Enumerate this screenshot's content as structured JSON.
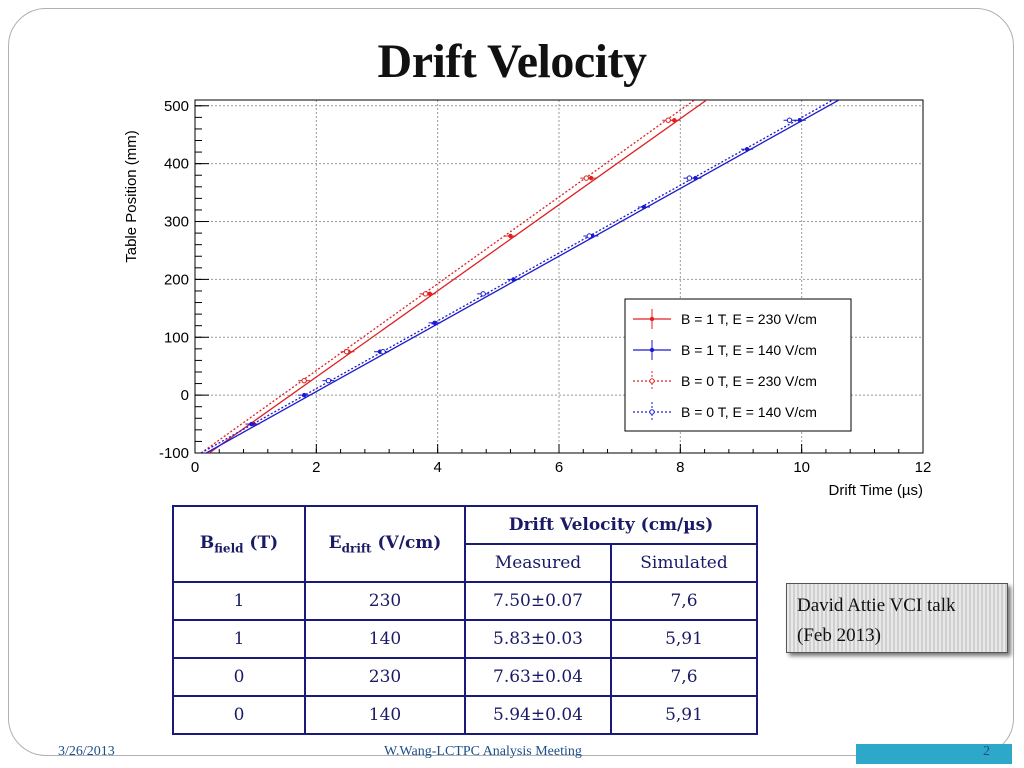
{
  "slide": {
    "title": "Drift Velocity",
    "note_line1": "David Attie VCI talk",
    "note_line2": "(Feb 2013)",
    "footer_date": "3/26/2013",
    "footer_center": "W.Wang-LCTPC Analysis Meeting",
    "page_number": "2"
  },
  "table": {
    "header_bfield": "B",
    "header_bfield_sub": "field",
    "header_bfield_unit": " (T)",
    "header_edrift": "E",
    "header_edrift_sub": "drift",
    "header_edrift_unit": " (V/cm)",
    "header_velocity": "Drift Velocity (cm/µs)",
    "header_measured": "Measured",
    "header_simulated": "Simulated",
    "rows": [
      {
        "b": "1",
        "e": "230",
        "measured": "7.50±0.07",
        "simulated": "7,6"
      },
      {
        "b": "1",
        "e": "140",
        "measured": "5.83±0.03",
        "simulated": "5,91"
      },
      {
        "b": "0",
        "e": "230",
        "measured": "7.63±0.04",
        "simulated": "7,6"
      },
      {
        "b": "0",
        "e": "140",
        "measured": "5.94±0.04",
        "simulated": "5,91"
      }
    ]
  },
  "chart_data": {
    "type": "scatter",
    "xlabel": "Drift Time (µs)",
    "ylabel": "Table Position (mm)",
    "xlim": [
      0,
      12
    ],
    "ylim": [
      -100,
      510
    ],
    "xticks": [
      "0",
      "2",
      "4",
      "6",
      "8",
      "10",
      "12"
    ],
    "yticks": [
      "-100",
      "0",
      "100",
      "200",
      "300",
      "400",
      "500"
    ],
    "grid": true,
    "legend_position": "bottom-right",
    "series": [
      {
        "name": "B = 1 T, E = 230 V/cm",
        "color": "#e02020",
        "style": "solid",
        "marker": "dot",
        "x": [
          0.97,
          2.53,
          3.87,
          5.2,
          6.53,
          7.9
        ],
        "y": [
          -50,
          75,
          175,
          275,
          375,
          475
        ],
        "fit": [
          [
            0.1,
            -110
          ],
          [
            8.5,
            515
          ]
        ]
      },
      {
        "name": "B = 1 T, E = 140 V/cm",
        "color": "#1a1ad0",
        "style": "solid",
        "marker": "dot",
        "x": [
          0.93,
          1.8,
          3.05,
          3.95,
          5.25,
          6.55,
          7.4,
          8.25,
          9.1,
          9.97
        ],
        "y": [
          -50,
          0,
          75,
          125,
          200,
          275,
          325,
          375,
          425,
          475
        ],
        "fit": [
          [
            0.1,
            -105
          ],
          [
            10.7,
            515
          ]
        ]
      },
      {
        "name": "B = 0 T, E = 230 V/cm",
        "color": "#e02020",
        "style": "dotted",
        "marker": "open",
        "x": [
          1.8,
          2.5,
          3.8,
          6.45,
          7.8
        ],
        "y": [
          25,
          75,
          175,
          375,
          475
        ],
        "fit": [
          [
            0.1,
            -100
          ],
          [
            8.3,
            515
          ]
        ]
      },
      {
        "name": "B = 0 T, E = 140 V/cm",
        "color": "#1a1ad0",
        "style": "dotted",
        "marker": "open",
        "x": [
          2.2,
          3.1,
          4.75,
          6.5,
          8.15,
          9.8
        ],
        "y": [
          25,
          75,
          175,
          275,
          375,
          475
        ],
        "fit": [
          [
            0.1,
            -100
          ],
          [
            10.6,
            515
          ]
        ]
      }
    ]
  }
}
